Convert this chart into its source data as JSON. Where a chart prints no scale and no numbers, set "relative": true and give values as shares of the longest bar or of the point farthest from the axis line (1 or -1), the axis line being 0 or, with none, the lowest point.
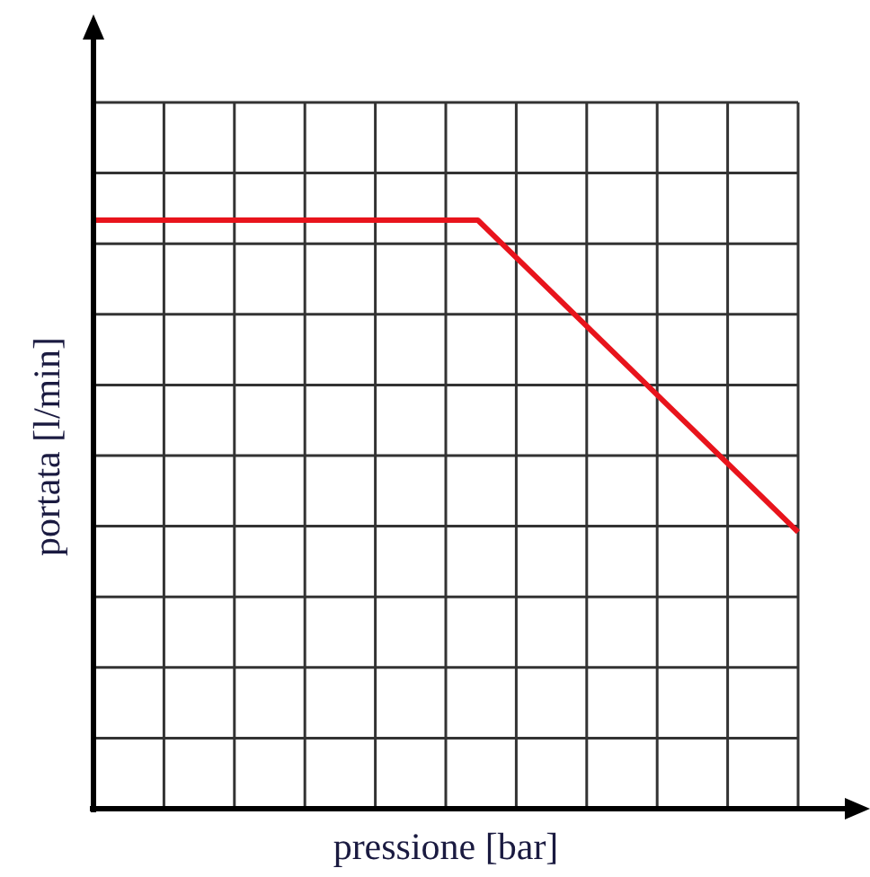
{
  "chart_data": {
    "type": "line",
    "relative": true,
    "xlabel": "pressione [bar]",
    "ylabel": "portata [l/min]",
    "categories": [
      null,
      null,
      null,
      null,
      null,
      null,
      null,
      null,
      null,
      null,
      null,
      null
    ],
    "series": [
      {
        "color": "#e8141c",
        "values": [
          1,
          1,
          1,
          1,
          1,
          1,
          1,
          0.894,
          0.788,
          0.682,
          0.576,
          0.47
        ]
      }
    ],
    "grid": true,
    "marker": "none",
    "line_style": "solid"
  }
}
